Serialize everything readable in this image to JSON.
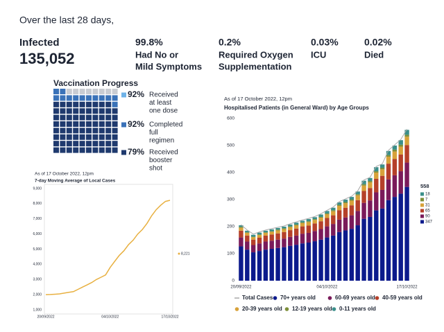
{
  "header": "Over the last 28 days,",
  "stats": [
    {
      "label": [
        "Infected"
      ],
      "value": "135,052"
    },
    {
      "value": "99.8%",
      "label": [
        "Had No or",
        "Mild Symptoms"
      ]
    },
    {
      "value": "0.2%",
      "label": [
        "Required Oxygen",
        "Supplementation"
      ]
    },
    {
      "value": "0.03%",
      "label": [
        "ICU"
      ]
    },
    {
      "value": "0.02%",
      "label": [
        "Died"
      ]
    }
  ],
  "chart_data": [
    {
      "type": "waffle",
      "title": "Vaccination Progress",
      "empty_color": "#c9ccd2",
      "series": [
        {
          "name": [
            "Received",
            "at least",
            "one dose"
          ],
          "color": "#6fb3e8",
          "values": [
            92
          ],
          "value_labels": [
            "92%"
          ]
        },
        {
          "name": [
            "Completed",
            "full",
            "regimen"
          ],
          "color": "#3a72b8",
          "values": [
            92
          ],
          "value_labels": [
            "92%"
          ]
        },
        {
          "name": [
            "Received",
            "booster",
            "shot"
          ],
          "color": "#1f3a6e",
          "values": [
            79
          ],
          "value_labels": [
            "79%"
          ]
        }
      ]
    },
    {
      "type": "line",
      "subtitle": "As of 17 October 2022, 12pm",
      "title": "7-day Moving Average of Local Cases",
      "color": "#e8b040",
      "categories": [
        "20/09/2022",
        null,
        null,
        null,
        null,
        null,
        null,
        null,
        null,
        null,
        null,
        null,
        null,
        null,
        "04/10/2022",
        null,
        null,
        null,
        null,
        null,
        null,
        null,
        null,
        null,
        null,
        null,
        null,
        "17/10/2022"
      ],
      "values": [
        2000,
        2010,
        2030,
        2050,
        2100,
        2150,
        2200,
        2350,
        2500,
        2650,
        2800,
        3000,
        3150,
        3300,
        3800,
        4200,
        4600,
        4900,
        5300,
        5600,
        6000,
        6300,
        6700,
        7200,
        7600,
        7900,
        8150,
        8221
      ],
      "value_labels": [
        null,
        null,
        null,
        null,
        null,
        null,
        null,
        null,
        null,
        null,
        null,
        null,
        null,
        null,
        null,
        null,
        null,
        null,
        null,
        null,
        null,
        null,
        null,
        null,
        null,
        null,
        null,
        "8,221"
      ],
      "ylim": [
        1000,
        9000
      ],
      "yticks": [
        {
          "value": 1000,
          "label": "1,000"
        },
        {
          "value": 2000,
          "label": "2,000"
        },
        {
          "value": 3000,
          "label": "3,000"
        },
        {
          "value": 4000,
          "label": "4,000"
        },
        {
          "value": 5000,
          "label": "5,000"
        },
        {
          "value": 6000,
          "label": "6,000"
        },
        {
          "value": 7000,
          "label": "7,000"
        },
        {
          "value": 8000,
          "label": "8,000"
        },
        {
          "value": 9000,
          "label": "9,000"
        }
      ]
    },
    {
      "type": "stacked_bar",
      "subtitle": "As of 17 October 2022, 12pm",
      "title": "Hospitalised Patients (in General Ward) by Age Groups",
      "categories": [
        "20/09/2022",
        null,
        null,
        null,
        null,
        null,
        null,
        null,
        null,
        null,
        null,
        null,
        null,
        null,
        "04/10/2022",
        null,
        null,
        null,
        null,
        null,
        null,
        null,
        null,
        null,
        null,
        null,
        null,
        "17/10/2022"
      ],
      "ylim": [
        0,
        600
      ],
      "yticks": [
        0,
        100,
        200,
        300,
        400,
        500,
        600
      ],
      "grid": false,
      "series": [
        {
          "name": "Total Cases",
          "type": "line",
          "color": "#a8a8a8",
          "values": [
            205,
            185,
            170,
            178,
            185,
            190,
            195,
            200,
            208,
            215,
            222,
            228,
            235,
            245,
            258,
            270,
            290,
            300,
            310,
            330,
            370,
            380,
            420,
            430,
            480,
            500,
            520,
            558
          ]
        },
        {
          "name": "70+ years old",
          "color": "#0c1a8c",
          "values": [
            127,
            115,
            105,
            110,
            115,
            118,
            121,
            124,
            129,
            133,
            138,
            141,
            146,
            152,
            160,
            167,
            180,
            186,
            192,
            205,
            229,
            236,
            260,
            267,
            298,
            310,
            322,
            347
          ]
        },
        {
          "name": "60-69 years old",
          "color": "#7a1a5a",
          "values": [
            33,
            30,
            27,
            28,
            30,
            30,
            31,
            32,
            33,
            34,
            36,
            36,
            38,
            39,
            41,
            43,
            46,
            48,
            50,
            53,
            59,
            61,
            67,
            69,
            77,
            80,
            83,
            90
          ]
        },
        {
          "name": "40-59 years old",
          "color": "#b5402a",
          "values": [
            25,
            22,
            20,
            21,
            22,
            23,
            23,
            24,
            25,
            26,
            27,
            27,
            28,
            29,
            31,
            32,
            35,
            36,
            37,
            40,
            44,
            46,
            50,
            52,
            58,
            60,
            62,
            65
          ]
        },
        {
          "name": "20-39 years old",
          "color": "#d8a23a",
          "values": [
            11,
            10,
            9,
            10,
            10,
            10,
            11,
            11,
            11,
            12,
            12,
            13,
            13,
            13,
            14,
            15,
            16,
            17,
            17,
            18,
            20,
            21,
            23,
            24,
            26,
            28,
            29,
            31
          ]
        },
        {
          "name": "12-19 years old",
          "color": "#7d8f3a",
          "values": [
            3,
            2,
            2,
            2,
            2,
            2,
            3,
            3,
            3,
            3,
            3,
            3,
            3,
            3,
            3,
            4,
            4,
            4,
            4,
            4,
            5,
            5,
            5,
            6,
            6,
            7,
            7,
            7
          ]
        },
        {
          "name": "0-11 years old",
          "color": "#3a8f8a",
          "values": [
            6,
            6,
            7,
            7,
            6,
            7,
            6,
            6,
            7,
            7,
            6,
            8,
            7,
            9,
            9,
            9,
            9,
            9,
            10,
            10,
            13,
            11,
            15,
            12,
            15,
            15,
            17,
            18
          ]
        }
      ]
    }
  ]
}
